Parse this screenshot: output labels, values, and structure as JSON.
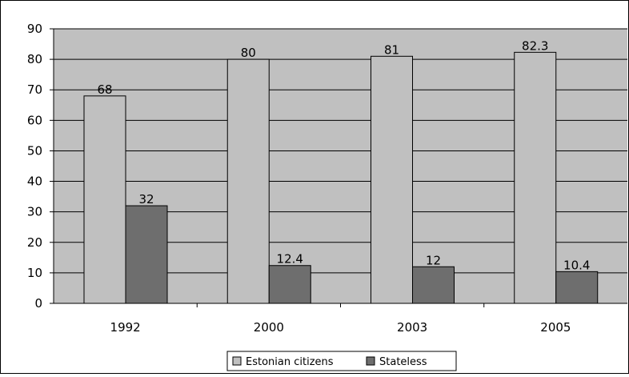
{
  "chart_data": {
    "type": "bar",
    "categories": [
      "1992",
      "2000",
      "2003",
      "2005"
    ],
    "series": [
      {
        "name": "Estonian citizens",
        "values": [
          68,
          80,
          81,
          82.3
        ],
        "labels": [
          "68",
          "80",
          "81",
          "82.3"
        ],
        "color": "#c0c0c0"
      },
      {
        "name": "Stateless",
        "values": [
          32,
          12.4,
          12,
          10.4
        ],
        "labels": [
          "32",
          "12.4",
          "12",
          "10.4"
        ],
        "color": "#6e6e6e"
      }
    ],
    "title": "",
    "xlabel": "",
    "ylabel": "",
    "ylim": [
      0,
      90
    ],
    "yticks": [
      "0",
      "10",
      "20",
      "30",
      "40",
      "50",
      "60",
      "70",
      "80",
      "90"
    ],
    "grid": true,
    "plot_background": "#c0c0c0",
    "legend_position": "bottom"
  }
}
